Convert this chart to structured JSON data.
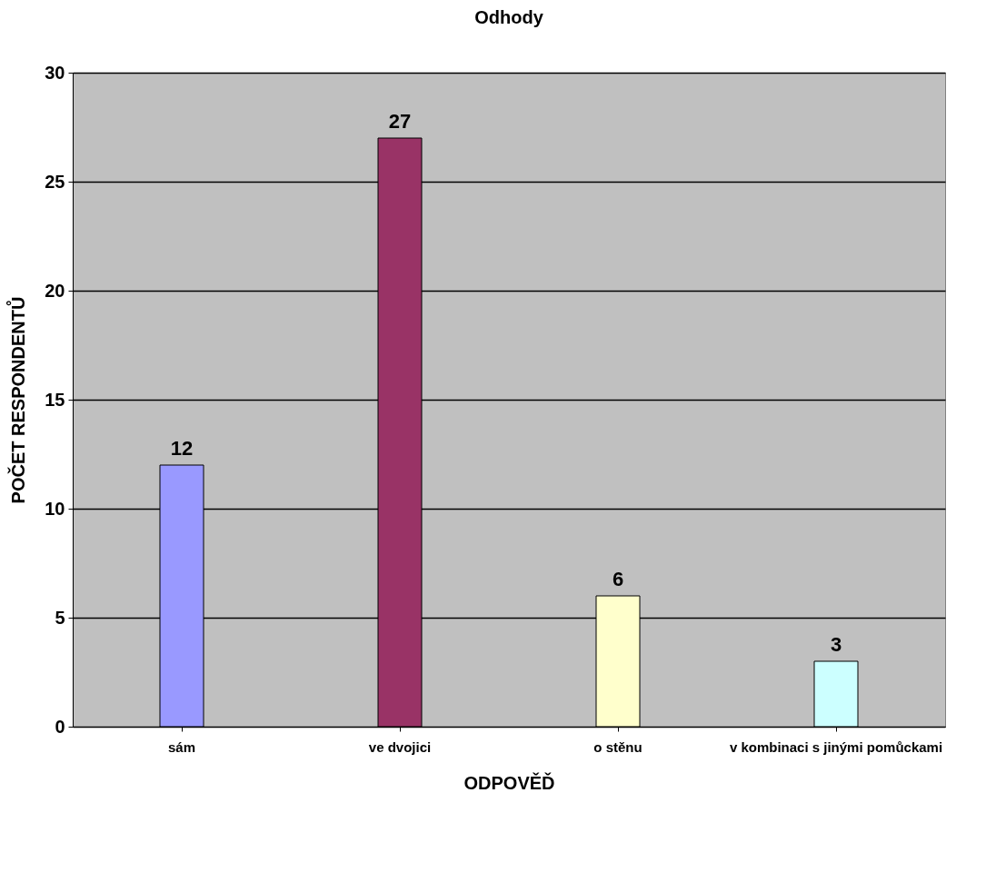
{
  "chart_data": {
    "type": "bar",
    "title": "Odhody",
    "xlabel": "ODPOVĚĎ",
    "ylabel": "POČET RESPONDENTŮ",
    "categories": [
      "sám",
      "ve dvojici",
      "o stěnu",
      "v kombinaci s jinými pomůckami"
    ],
    "values": [
      12,
      27,
      6,
      3
    ],
    "colors": [
      "#9999ff",
      "#993366",
      "#ffffcc",
      "#ccffff"
    ],
    "ylim": [
      0,
      30
    ],
    "yticks": [
      0,
      5,
      10,
      15,
      20,
      25,
      30
    ],
    "grid": "y",
    "data_labels": true
  }
}
